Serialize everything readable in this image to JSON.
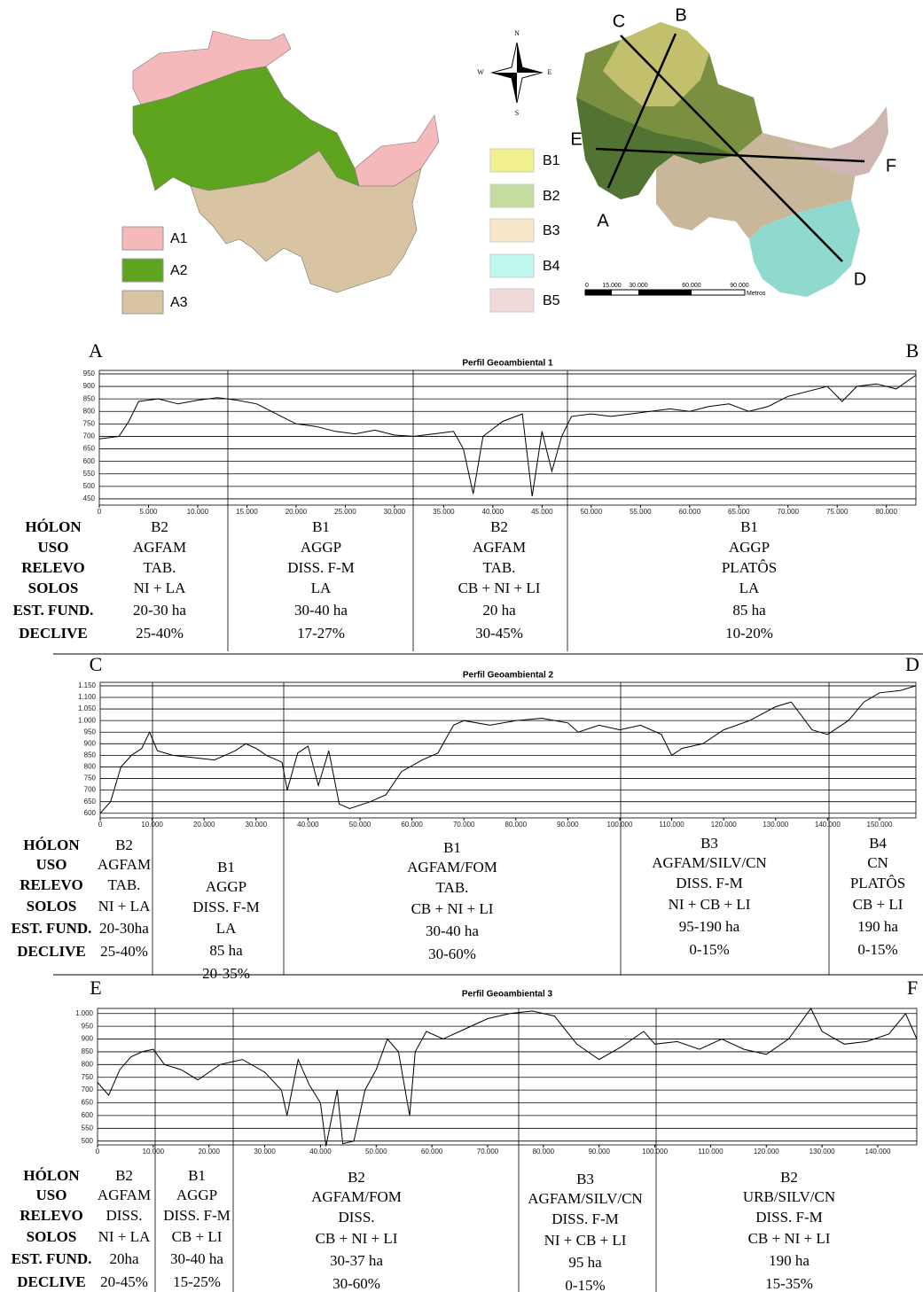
{
  "maps": {
    "legend_left": [
      {
        "label": "A1",
        "color": "#f6b9bb"
      },
      {
        "label": "A2",
        "color": "#5fa41f"
      },
      {
        "label": "A3",
        "color": "#d8c4a3"
      }
    ],
    "legend_right": [
      {
        "label": "B1",
        "color": "#f1f08e"
      },
      {
        "label": "B2",
        "color": "#c5dc9f"
      },
      {
        "label": "B3",
        "color": "#f8e7c8"
      },
      {
        "label": "B4",
        "color": "#bff6ee"
      },
      {
        "label": "B5",
        "color": "#efd9d9"
      }
    ],
    "compass": {
      "n": "N",
      "e": "E",
      "s": "S",
      "w": "W"
    },
    "section_labels": [
      "A",
      "B",
      "C",
      "D",
      "E",
      "F"
    ],
    "scale": {
      "labels": [
        "0",
        "15.000",
        "30.000",
        "60.000",
        "90.000"
      ],
      "unit": "Metros"
    }
  },
  "chart_data": [
    {
      "type": "line",
      "title": "Perfil Geoambiental 1",
      "start_label": "A",
      "end_label": "B",
      "color": "#000000",
      "grid": true,
      "x": [
        0,
        2000,
        3000,
        4000,
        6000,
        8000,
        10000,
        12000,
        14000,
        16000,
        18000,
        20000,
        22000,
        24000,
        26000,
        28000,
        30000,
        32000,
        34000,
        36000,
        37000,
        38000,
        39000,
        41000,
        43000,
        44000,
        45000,
        46000,
        47000,
        48000,
        50000,
        52000,
        54000,
        56000,
        58000,
        60000,
        62000,
        64000,
        66000,
        68000,
        70000,
        72000,
        74000,
        75500,
        77000,
        79000,
        81000,
        83000
      ],
      "values": [
        690,
        700,
        760,
        840,
        850,
        830,
        845,
        855,
        845,
        830,
        790,
        750,
        740,
        720,
        710,
        725,
        705,
        700,
        710,
        720,
        650,
        470,
        700,
        760,
        790,
        460,
        720,
        560,
        700,
        780,
        790,
        780,
        790,
        800,
        810,
        800,
        820,
        830,
        800,
        820,
        860,
        880,
        900,
        840,
        900,
        910,
        890,
        945
      ],
      "xlim": [
        0,
        83000
      ],
      "ylim": [
        425,
        964
      ],
      "xticks": [
        0,
        {
          "value": 5000,
          "label": "5.000"
        },
        {
          "value": 10000,
          "label": "10.000"
        },
        {
          "value": 15000,
          "label": "15.000"
        },
        {
          "value": 20000,
          "label": "20.000"
        },
        {
          "value": 25000,
          "label": "25.000"
        },
        {
          "value": 30000,
          "label": "30.000"
        },
        {
          "value": 35000,
          "label": "35.000"
        },
        {
          "value": 40000,
          "label": "40.000"
        },
        {
          "value": 45000,
          "label": "45.000"
        },
        {
          "value": 50000,
          "label": "50.000"
        },
        {
          "value": 55000,
          "label": "55.000"
        },
        {
          "value": 60000,
          "label": "60.000"
        },
        {
          "value": 65000,
          "label": "65.000"
        },
        {
          "value": 70000,
          "label": "70.000"
        },
        {
          "value": 75000,
          "label": "75.000"
        },
        {
          "value": 80000,
          "label": "80.000"
        }
      ],
      "yticks": [
        450,
        500,
        550,
        600,
        650,
        700,
        750,
        800,
        850,
        900,
        950
      ],
      "table": {
        "row_labels": [
          "HÓLON",
          "USO",
          "RELEVO",
          "SOLOS",
          "EST. FUND.",
          "DECLIVE"
        ],
        "columns": [
          [
            "B2",
            "AGFAM",
            "TAB.",
            "NI + LA",
            "20-30 ha",
            "25-40%"
          ],
          [
            "B1",
            "AGGP",
            "DISS. F-M",
            "LA",
            "30-40 ha",
            "17-27%"
          ],
          [
            "B2",
            "AGFAM",
            "TAB.",
            "CB + NI + LI",
            "20 ha",
            "30-45%"
          ],
          [
            "B1",
            "AGGP",
            "PLATÔS",
            "LA",
            "85 ha",
            "10-20%"
          ]
        ]
      }
    },
    {
      "type": "line",
      "title": "Perfil Geoambiental 2",
      "start_label": "C",
      "end_label": "D",
      "color": "#000000",
      "grid": true,
      "x": [
        0,
        2000,
        4000,
        6000,
        8000,
        9500,
        11000,
        14000,
        18000,
        22000,
        26000,
        28000,
        30000,
        32000,
        35000,
        36000,
        38000,
        40000,
        42000,
        44000,
        46000,
        48000,
        52000,
        55000,
        58000,
        62000,
        65000,
        68000,
        70000,
        75000,
        80000,
        85000,
        90000,
        92000,
        96000,
        100000,
        104000,
        108000,
        110000,
        112000,
        116000,
        120000,
        125000,
        130000,
        133000,
        137000,
        140000,
        144000,
        147000,
        150000,
        154000,
        157000
      ],
      "values": [
        600,
        650,
        800,
        850,
        880,
        950,
        870,
        850,
        840,
        830,
        870,
        900,
        880,
        850,
        820,
        700,
        860,
        890,
        720,
        870,
        640,
        620,
        650,
        680,
        780,
        830,
        860,
        980,
        1000,
        980,
        1000,
        1010,
        990,
        950,
        980,
        960,
        980,
        940,
        850,
        880,
        900,
        960,
        1000,
        1060,
        1080,
        960,
        940,
        1000,
        1080,
        1120,
        1130,
        1150
      ],
      "xlim": [
        0,
        157000
      ],
      "ylim": [
        580,
        1165
      ],
      "xticks": [
        0,
        {
          "value": 10000,
          "label": "10.000"
        },
        {
          "value": 20000,
          "label": "20.000"
        },
        {
          "value": 30000,
          "label": "30.000"
        },
        {
          "value": 40000,
          "label": "40.000"
        },
        {
          "value": 50000,
          "label": "50.000"
        },
        {
          "value": 60000,
          "label": "60.000"
        },
        {
          "value": 70000,
          "label": "70.000"
        },
        {
          "value": 80000,
          "label": "80.000"
        },
        {
          "value": 90000,
          "label": "90.000"
        },
        {
          "value": 100000,
          "label": "100.000"
        },
        {
          "value": 110000,
          "label": "110.000"
        },
        {
          "value": 120000,
          "label": "120.000"
        },
        {
          "value": 130000,
          "label": "130.000"
        },
        {
          "value": 140000,
          "label": "140.000"
        },
        {
          "value": 150000,
          "label": "150.000"
        }
      ],
      "yticks": [
        600,
        650,
        700,
        750,
        800,
        850,
        900,
        950,
        {
          "value": 1000,
          "label": "1.000"
        },
        {
          "value": 1050,
          "label": "1.050"
        },
        {
          "value": 1100,
          "label": "1.100"
        },
        {
          "value": 1150,
          "label": "1.150"
        }
      ],
      "table": {
        "row_labels": [
          "HÓLON",
          "USO",
          "RELEVO",
          "SOLOS",
          "EST. FUND.",
          "DECLIVE"
        ],
        "columns": [
          [
            "B2",
            "AGFAM",
            "TAB.",
            "NI + LA",
            "20-30ha",
            "25-40%"
          ],
          [
            "B1",
            "AGGP",
            "DISS. F-M",
            "LA",
            "85 ha",
            "20-35%"
          ],
          [
            "B1",
            "AGFAM/FOM",
            "TAB.",
            "CB + NI + LI",
            "30-40 ha",
            "30-60%"
          ],
          [
            "B3",
            "AGFAM/SILV/CN",
            "DISS. F-M",
            "NI + CB + LI",
            "95-190 ha",
            "0-15%"
          ],
          [
            "B4",
            "CN",
            "PLATÔS",
            "CB + LI",
            "190 ha",
            "0-15%"
          ]
        ]
      }
    },
    {
      "type": "line",
      "title": "Perfil Geoambiental 3",
      "start_label": "E",
      "end_label": "F",
      "color": "#000000",
      "grid": true,
      "x": [
        0,
        2000,
        4000,
        6000,
        8000,
        10000,
        12000,
        15000,
        18000,
        22000,
        26000,
        30000,
        33000,
        34000,
        36000,
        38000,
        40000,
        41000,
        43000,
        44000,
        46000,
        48000,
        50000,
        52000,
        54000,
        56000,
        57000,
        59000,
        62000,
        66000,
        70000,
        74000,
        78000,
        82000,
        86000,
        90000,
        94000,
        98000,
        100000,
        104000,
        108000,
        112000,
        116000,
        120000,
        124000,
        128000,
        130000,
        134000,
        138000,
        142000,
        145000,
        147000
      ],
      "values": [
        730,
        680,
        780,
        830,
        850,
        860,
        800,
        780,
        740,
        800,
        820,
        770,
        700,
        600,
        820,
        720,
        650,
        480,
        700,
        490,
        500,
        700,
        780,
        900,
        850,
        600,
        850,
        930,
        900,
        940,
        980,
        1000,
        1010,
        990,
        880,
        820,
        870,
        930,
        880,
        890,
        860,
        900,
        860,
        840,
        900,
        1020,
        930,
        880,
        890,
        920,
        1000,
        900
      ],
      "xlim": [
        0,
        147000
      ],
      "ylim": [
        485,
        1020
      ],
      "xticks": [
        0,
        {
          "value": 10000,
          "label": "10.000"
        },
        {
          "value": 20000,
          "label": "20.000"
        },
        {
          "value": 30000,
          "label": "30.000"
        },
        {
          "value": 40000,
          "label": "40.000"
        },
        {
          "value": 50000,
          "label": "50.000"
        },
        {
          "value": 60000,
          "label": "60.000"
        },
        {
          "value": 70000,
          "label": "70.000"
        },
        {
          "value": 80000,
          "label": "80.000"
        },
        {
          "value": 90000,
          "label": "90.000"
        },
        {
          "value": 100000,
          "label": "100.000"
        },
        {
          "value": 110000,
          "label": "110.000"
        },
        {
          "value": 120000,
          "label": "120.000"
        },
        {
          "value": 130000,
          "label": "130.000"
        },
        {
          "value": 140000,
          "label": "140.000"
        }
      ],
      "yticks": [
        500,
        550,
        600,
        650,
        700,
        750,
        800,
        850,
        900,
        950,
        {
          "value": 1000,
          "label": "1.000"
        }
      ],
      "table": {
        "row_labels": [
          "HÓLON",
          "USO",
          "RELEVO",
          "SOLOS",
          "EST. FUND.",
          "DECLIVE"
        ],
        "columns": [
          [
            "B2",
            "AGFAM",
            "DISS.",
            "NI + LA",
            "20ha",
            "20-45%"
          ],
          [
            "B1",
            "AGGP",
            "DISS. F-M",
            "CB + LI",
            "30-40 ha",
            "15-25%"
          ],
          [
            "B2",
            "AGFAM/FOM",
            "DISS.",
            "CB + NI + LI",
            "30-37 ha",
            "30-60%"
          ],
          [
            "B3",
            "AGFAM/SILV/CN",
            "DISS. F-M",
            "NI + CB + LI",
            "95 ha",
            "0-15%"
          ],
          [
            "B2",
            "URB/SILV/CN",
            "DISS. F-M",
            "CB + NI + LI",
            "190 ha",
            "15-35%"
          ]
        ]
      }
    }
  ]
}
